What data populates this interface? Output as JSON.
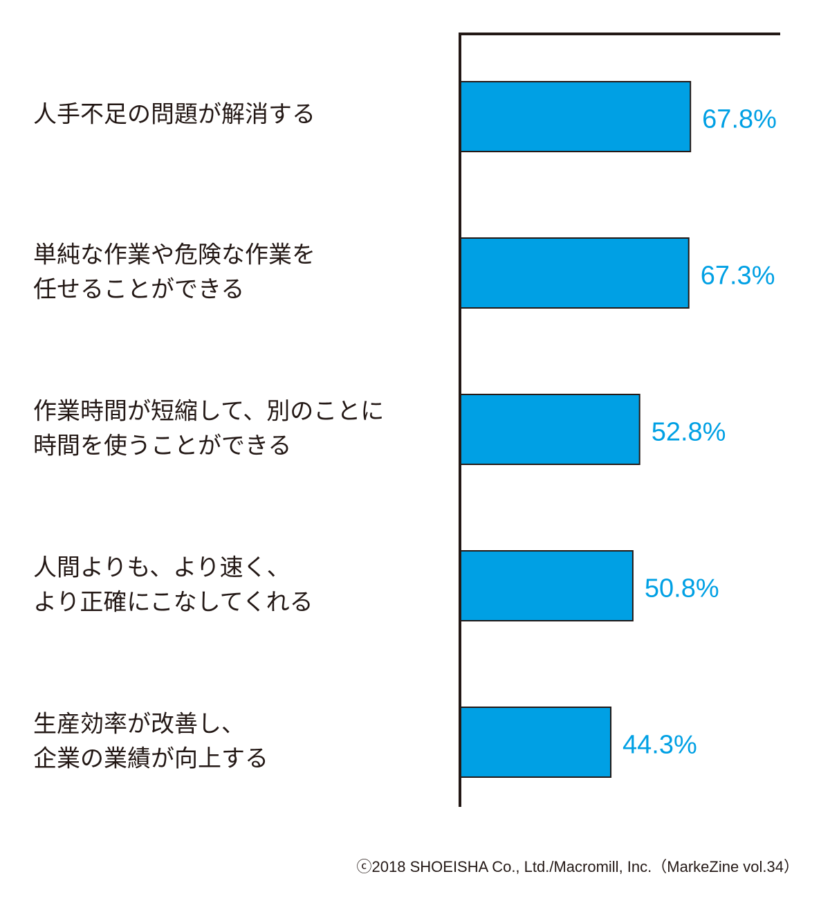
{
  "chart_data": {
    "type": "bar",
    "orientation": "horizontal",
    "categories": [
      [
        "人手不足の問題が解消する"
      ],
      [
        "単純な作業や危険な作業を",
        "任せることができる"
      ],
      [
        "作業時間が短縮して、別のことに",
        "時間を使うことができる"
      ],
      [
        "人間よりも、より速く、",
        "より正確にこなしてくれる"
      ],
      [
        "生産効率が改善し、",
        "企業の業績が向上する"
      ]
    ],
    "values": [
      67.8,
      67.3,
      52.8,
      50.8,
      44.3
    ],
    "value_labels": [
      "67.8%",
      "67.3%",
      "52.8%",
      "50.8%",
      "44.3%"
    ],
    "unit": "%",
    "xlim": [
      0,
      94.5
    ],
    "grid": false,
    "bar_color": "#00a0e4",
    "label_color": "#00a0e4",
    "axis_color": "#231815"
  },
  "credit": "ⓒ2018 SHOEISHA Co., Ltd./Macromill, Inc.（MarkeZine vol.34）"
}
